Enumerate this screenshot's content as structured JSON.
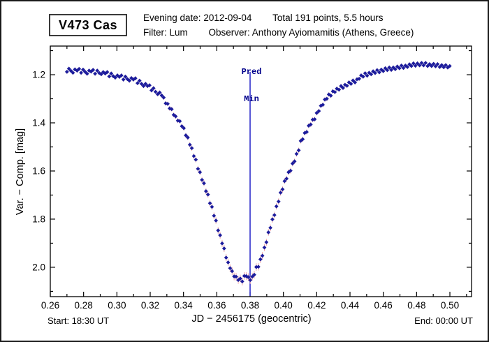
{
  "window": {
    "background": "#ffffff",
    "border_color": "#1a1a1a"
  },
  "header": {
    "target_name": "V473 Cas",
    "evening_date": "Evening date: 2012-09-04",
    "points_summary": "Total 191 points, 5.5 hours",
    "filter": "Filter: Lum",
    "observer": "Observer: Anthony Ayiomamitis (Athens, Greece)"
  },
  "footer": {
    "start": "Start: 18:30 UT",
    "end": "End: 00:00 UT"
  },
  "chart_data": {
    "type": "scatter",
    "title": "V473 Cas eclipse light curve",
    "xlabel": "JD − 2456175  (geocentric)",
    "ylabel": "Var. − Comp. [mag]",
    "xlim": [
      0.26,
      0.513
    ],
    "ylim": [
      1.081,
      2.122
    ],
    "y_axis_inverted": true,
    "grid": false,
    "x_major_ticks": [
      0.26,
      0.28,
      0.3,
      0.32,
      0.34,
      0.36,
      0.38,
      0.4,
      0.42,
      0.44,
      0.46,
      0.48,
      0.5
    ],
    "x_minor_ticks": [
      0.27,
      0.29,
      0.31,
      0.33,
      0.35,
      0.37,
      0.39,
      0.41,
      0.43,
      0.45,
      0.47,
      0.49,
      0.51
    ],
    "y_major_ticks": [
      1.2,
      1.4,
      1.6,
      1.8,
      2.0
    ],
    "y_minor_ticks": [
      1.1,
      1.3,
      1.5,
      1.7,
      1.9,
      2.1
    ],
    "marker_color": "#1c1c9c",
    "errorbar_color": "#f2a8a8",
    "pred_min": {
      "x": 0.38,
      "label": [
        "Pred",
        "Min"
      ],
      "line_color": "#2323c8",
      "text_color": "#00008b"
    },
    "points": [
      [
        0.27,
        1.188
      ],
      [
        0.2712,
        1.175
      ],
      [
        0.2724,
        1.184
      ],
      [
        0.2736,
        1.192
      ],
      [
        0.2748,
        1.178
      ],
      [
        0.2761,
        1.183
      ],
      [
        0.2773,
        1.176
      ],
      [
        0.2785,
        1.192
      ],
      [
        0.2797,
        1.179
      ],
      [
        0.2809,
        1.188
      ],
      [
        0.2821,
        1.196
      ],
      [
        0.2833,
        1.183
      ],
      [
        0.2845,
        1.187
      ],
      [
        0.2857,
        1.18
      ],
      [
        0.2869,
        1.196
      ],
      [
        0.2882,
        1.183
      ],
      [
        0.2894,
        1.193
      ],
      [
        0.2906,
        1.198
      ],
      [
        0.2918,
        1.189
      ],
      [
        0.293,
        1.195
      ],
      [
        0.2942,
        1.189
      ],
      [
        0.2954,
        1.207
      ],
      [
        0.2966,
        1.195
      ],
      [
        0.2978,
        1.206
      ],
      [
        0.299,
        1.212
      ],
      [
        0.3003,
        1.203
      ],
      [
        0.3015,
        1.209
      ],
      [
        0.3027,
        1.203
      ],
      [
        0.3039,
        1.22
      ],
      [
        0.3051,
        1.208
      ],
      [
        0.3063,
        1.218
      ],
      [
        0.3075,
        1.225
      ],
      [
        0.3087,
        1.214
      ],
      [
        0.3099,
        1.22
      ],
      [
        0.3111,
        1.215
      ],
      [
        0.3124,
        1.235
      ],
      [
        0.3136,
        1.225
      ],
      [
        0.3148,
        1.238
      ],
      [
        0.316,
        1.247
      ],
      [
        0.3172,
        1.238
      ],
      [
        0.3184,
        1.247
      ],
      [
        0.3196,
        1.244
      ],
      [
        0.3208,
        1.265
      ],
      [
        0.322,
        1.256
      ],
      [
        0.3232,
        1.271
      ],
      [
        0.3245,
        1.281
      ],
      [
        0.3257,
        1.274
      ],
      [
        0.3269,
        1.286
      ],
      [
        0.3281,
        1.295
      ],
      [
        0.3293,
        1.319
      ],
      [
        0.3305,
        1.321
      ],
      [
        0.3317,
        1.34
      ],
      [
        0.3329,
        1.343
      ],
      [
        0.3341,
        1.367
      ],
      [
        0.3353,
        1.373
      ],
      [
        0.3366,
        1.391
      ],
      [
        0.3378,
        1.393
      ],
      [
        0.339,
        1.414
      ],
      [
        0.3402,
        1.422
      ],
      [
        0.3414,
        1.452
      ],
      [
        0.3426,
        1.461
      ],
      [
        0.3438,
        1.491
      ],
      [
        0.345,
        1.505
      ],
      [
        0.3462,
        1.538
      ],
      [
        0.3474,
        1.553
      ],
      [
        0.3487,
        1.591
      ],
      [
        0.3499,
        1.605
      ],
      [
        0.3511,
        1.637
      ],
      [
        0.3523,
        1.651
      ],
      [
        0.3535,
        1.684
      ],
      [
        0.3547,
        1.698
      ],
      [
        0.3559,
        1.734
      ],
      [
        0.3571,
        1.749
      ],
      [
        0.3583,
        1.786
      ],
      [
        0.3595,
        1.806
      ],
      [
        0.3608,
        1.847
      ],
      [
        0.362,
        1.867
      ],
      [
        0.3632,
        1.901
      ],
      [
        0.3644,
        1.922
      ],
      [
        0.3656,
        1.96
      ],
      [
        0.3668,
        1.98
      ],
      [
        0.368,
        2.004
      ],
      [
        0.3692,
        2.016
      ],
      [
        0.3704,
        2.038
      ],
      [
        0.3716,
        2.039
      ],
      [
        0.3729,
        2.053
      ],
      [
        0.3741,
        2.047
      ],
      [
        0.3753,
        2.059
      ],
      [
        0.3765,
        2.036
      ],
      [
        0.3777,
        2.037
      ],
      [
        0.3789,
        2.041
      ],
      [
        0.3801,
        2.053
      ],
      [
        0.3813,
        2.039
      ],
      [
        0.3825,
        2.031
      ],
      [
        0.3837,
        1.999
      ],
      [
        0.385,
        1.998
      ],
      [
        0.3862,
        1.967
      ],
      [
        0.3874,
        1.952
      ],
      [
        0.3886,
        1.918
      ],
      [
        0.3898,
        1.896
      ],
      [
        0.391,
        1.855
      ],
      [
        0.3922,
        1.836
      ],
      [
        0.3934,
        1.801
      ],
      [
        0.3946,
        1.783
      ],
      [
        0.3958,
        1.747
      ],
      [
        0.3971,
        1.727
      ],
      [
        0.3983,
        1.69
      ],
      [
        0.3995,
        1.676
      ],
      [
        0.4007,
        1.642
      ],
      [
        0.4019,
        1.632
      ],
      [
        0.4031,
        1.605
      ],
      [
        0.4043,
        1.599
      ],
      [
        0.4055,
        1.569
      ],
      [
        0.4067,
        1.56
      ],
      [
        0.4079,
        1.529
      ],
      [
        0.4092,
        1.514
      ],
      [
        0.4104,
        1.475
      ],
      [
        0.4116,
        1.468
      ],
      [
        0.4128,
        1.442
      ],
      [
        0.414,
        1.438
      ],
      [
        0.4152,
        1.412
      ],
      [
        0.4164,
        1.407
      ],
      [
        0.4176,
        1.387
      ],
      [
        0.4188,
        1.385
      ],
      [
        0.42,
        1.359
      ],
      [
        0.4213,
        1.351
      ],
      [
        0.4225,
        1.329
      ],
      [
        0.4237,
        1.325
      ],
      [
        0.4249,
        1.303
      ],
      [
        0.4261,
        1.3
      ],
      [
        0.4273,
        1.282
      ],
      [
        0.4285,
        1.287
      ],
      [
        0.4297,
        1.269
      ],
      [
        0.4309,
        1.272
      ],
      [
        0.4321,
        1.258
      ],
      [
        0.4334,
        1.262
      ],
      [
        0.4346,
        1.247
      ],
      [
        0.4358,
        1.255
      ],
      [
        0.437,
        1.242
      ],
      [
        0.4382,
        1.246
      ],
      [
        0.4394,
        1.232
      ],
      [
        0.4406,
        1.238
      ],
      [
        0.4418,
        1.224
      ],
      [
        0.443,
        1.232
      ],
      [
        0.4442,
        1.219
      ],
      [
        0.4455,
        1.217
      ],
      [
        0.4467,
        1.203
      ],
      [
        0.4479,
        1.208
      ],
      [
        0.4491,
        1.194
      ],
      [
        0.4503,
        1.204
      ],
      [
        0.4515,
        1.192
      ],
      [
        0.4527,
        1.198
      ],
      [
        0.4539,
        1.186
      ],
      [
        0.4551,
        1.193
      ],
      [
        0.4563,
        1.181
      ],
      [
        0.4576,
        1.19
      ],
      [
        0.4588,
        1.179
      ],
      [
        0.46,
        1.185
      ],
      [
        0.4612,
        1.173
      ],
      [
        0.4624,
        1.181
      ],
      [
        0.4636,
        1.17
      ],
      [
        0.4648,
        1.18
      ],
      [
        0.466,
        1.17
      ],
      [
        0.4672,
        1.177
      ],
      [
        0.4684,
        1.166
      ],
      [
        0.4697,
        1.173
      ],
      [
        0.4709,
        1.162
      ],
      [
        0.4721,
        1.172
      ],
      [
        0.4733,
        1.162
      ],
      [
        0.4745,
        1.168
      ],
      [
        0.4757,
        1.157
      ],
      [
        0.4769,
        1.164
      ],
      [
        0.4781,
        1.153
      ],
      [
        0.4793,
        1.163
      ],
      [
        0.4805,
        1.153
      ],
      [
        0.4818,
        1.161
      ],
      [
        0.483,
        1.151
      ],
      [
        0.4842,
        1.161
      ],
      [
        0.4854,
        1.151
      ],
      [
        0.4866,
        1.164
      ],
      [
        0.4878,
        1.156
      ],
      [
        0.489,
        1.164
      ],
      [
        0.4902,
        1.155
      ],
      [
        0.4914,
        1.165
      ],
      [
        0.4926,
        1.156
      ],
      [
        0.4939,
        1.168
      ],
      [
        0.4951,
        1.16
      ],
      [
        0.4963,
        1.169
      ],
      [
        0.4975,
        1.16
      ],
      [
        0.4987,
        1.17
      ],
      [
        0.4999,
        1.164
      ]
    ]
  }
}
